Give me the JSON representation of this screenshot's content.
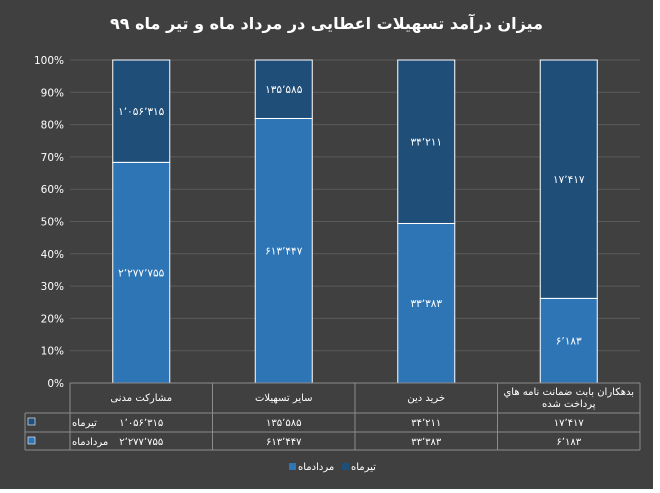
{
  "title": "میزان درآمد تسهیلات اعطایی در مرداد ماه و تیر ماه ۹۹",
  "colors": {
    "background": "#404040",
    "tir": "#1F4E79",
    "mordad": "#2E75B6",
    "grid": "#5a5a5a"
  },
  "chart_data": {
    "type": "bar",
    "stacked": "percent",
    "title": "میزان درآمد تسهیلات اعطایی در مرداد ماه و تیر ماه ۹۹",
    "categories": [
      "مشارکت مدنی",
      "سایر تسهیلات",
      "خرید دین",
      "بدهکاران بابت ضمانت نامه هاي پرداخت شده"
    ],
    "y_ticks": [
      "0%",
      "10%",
      "20%",
      "30%",
      "40%",
      "50%",
      "60%",
      "70%",
      "80%",
      "90%",
      "100%"
    ],
    "ylim": [
      0,
      100
    ],
    "grid": true,
    "legend_position": "bottom",
    "data_table": true,
    "series": [
      {
        "name": "تیرماه",
        "color": "#1F4E79",
        "values": [
          1056315,
          135585,
          34211,
          17417
        ],
        "labels": [
          "۱٬۰۵۶٬۳۱۵",
          "۱۳۵٬۵۸۵",
          "۳۴٬۲۱۱",
          "۱۷٬۴۱۷"
        ]
      },
      {
        "name": "مردادماه",
        "color": "#2E75B6",
        "values": [
          2277755,
          613447,
          33383,
          6183
        ],
        "labels": [
          "۲٬۲۷۷٬۷۵۵",
          "۶۱۳٬۴۴۷",
          "۳۳٬۳۸۳",
          "۶٬۱۸۳"
        ]
      }
    ]
  }
}
